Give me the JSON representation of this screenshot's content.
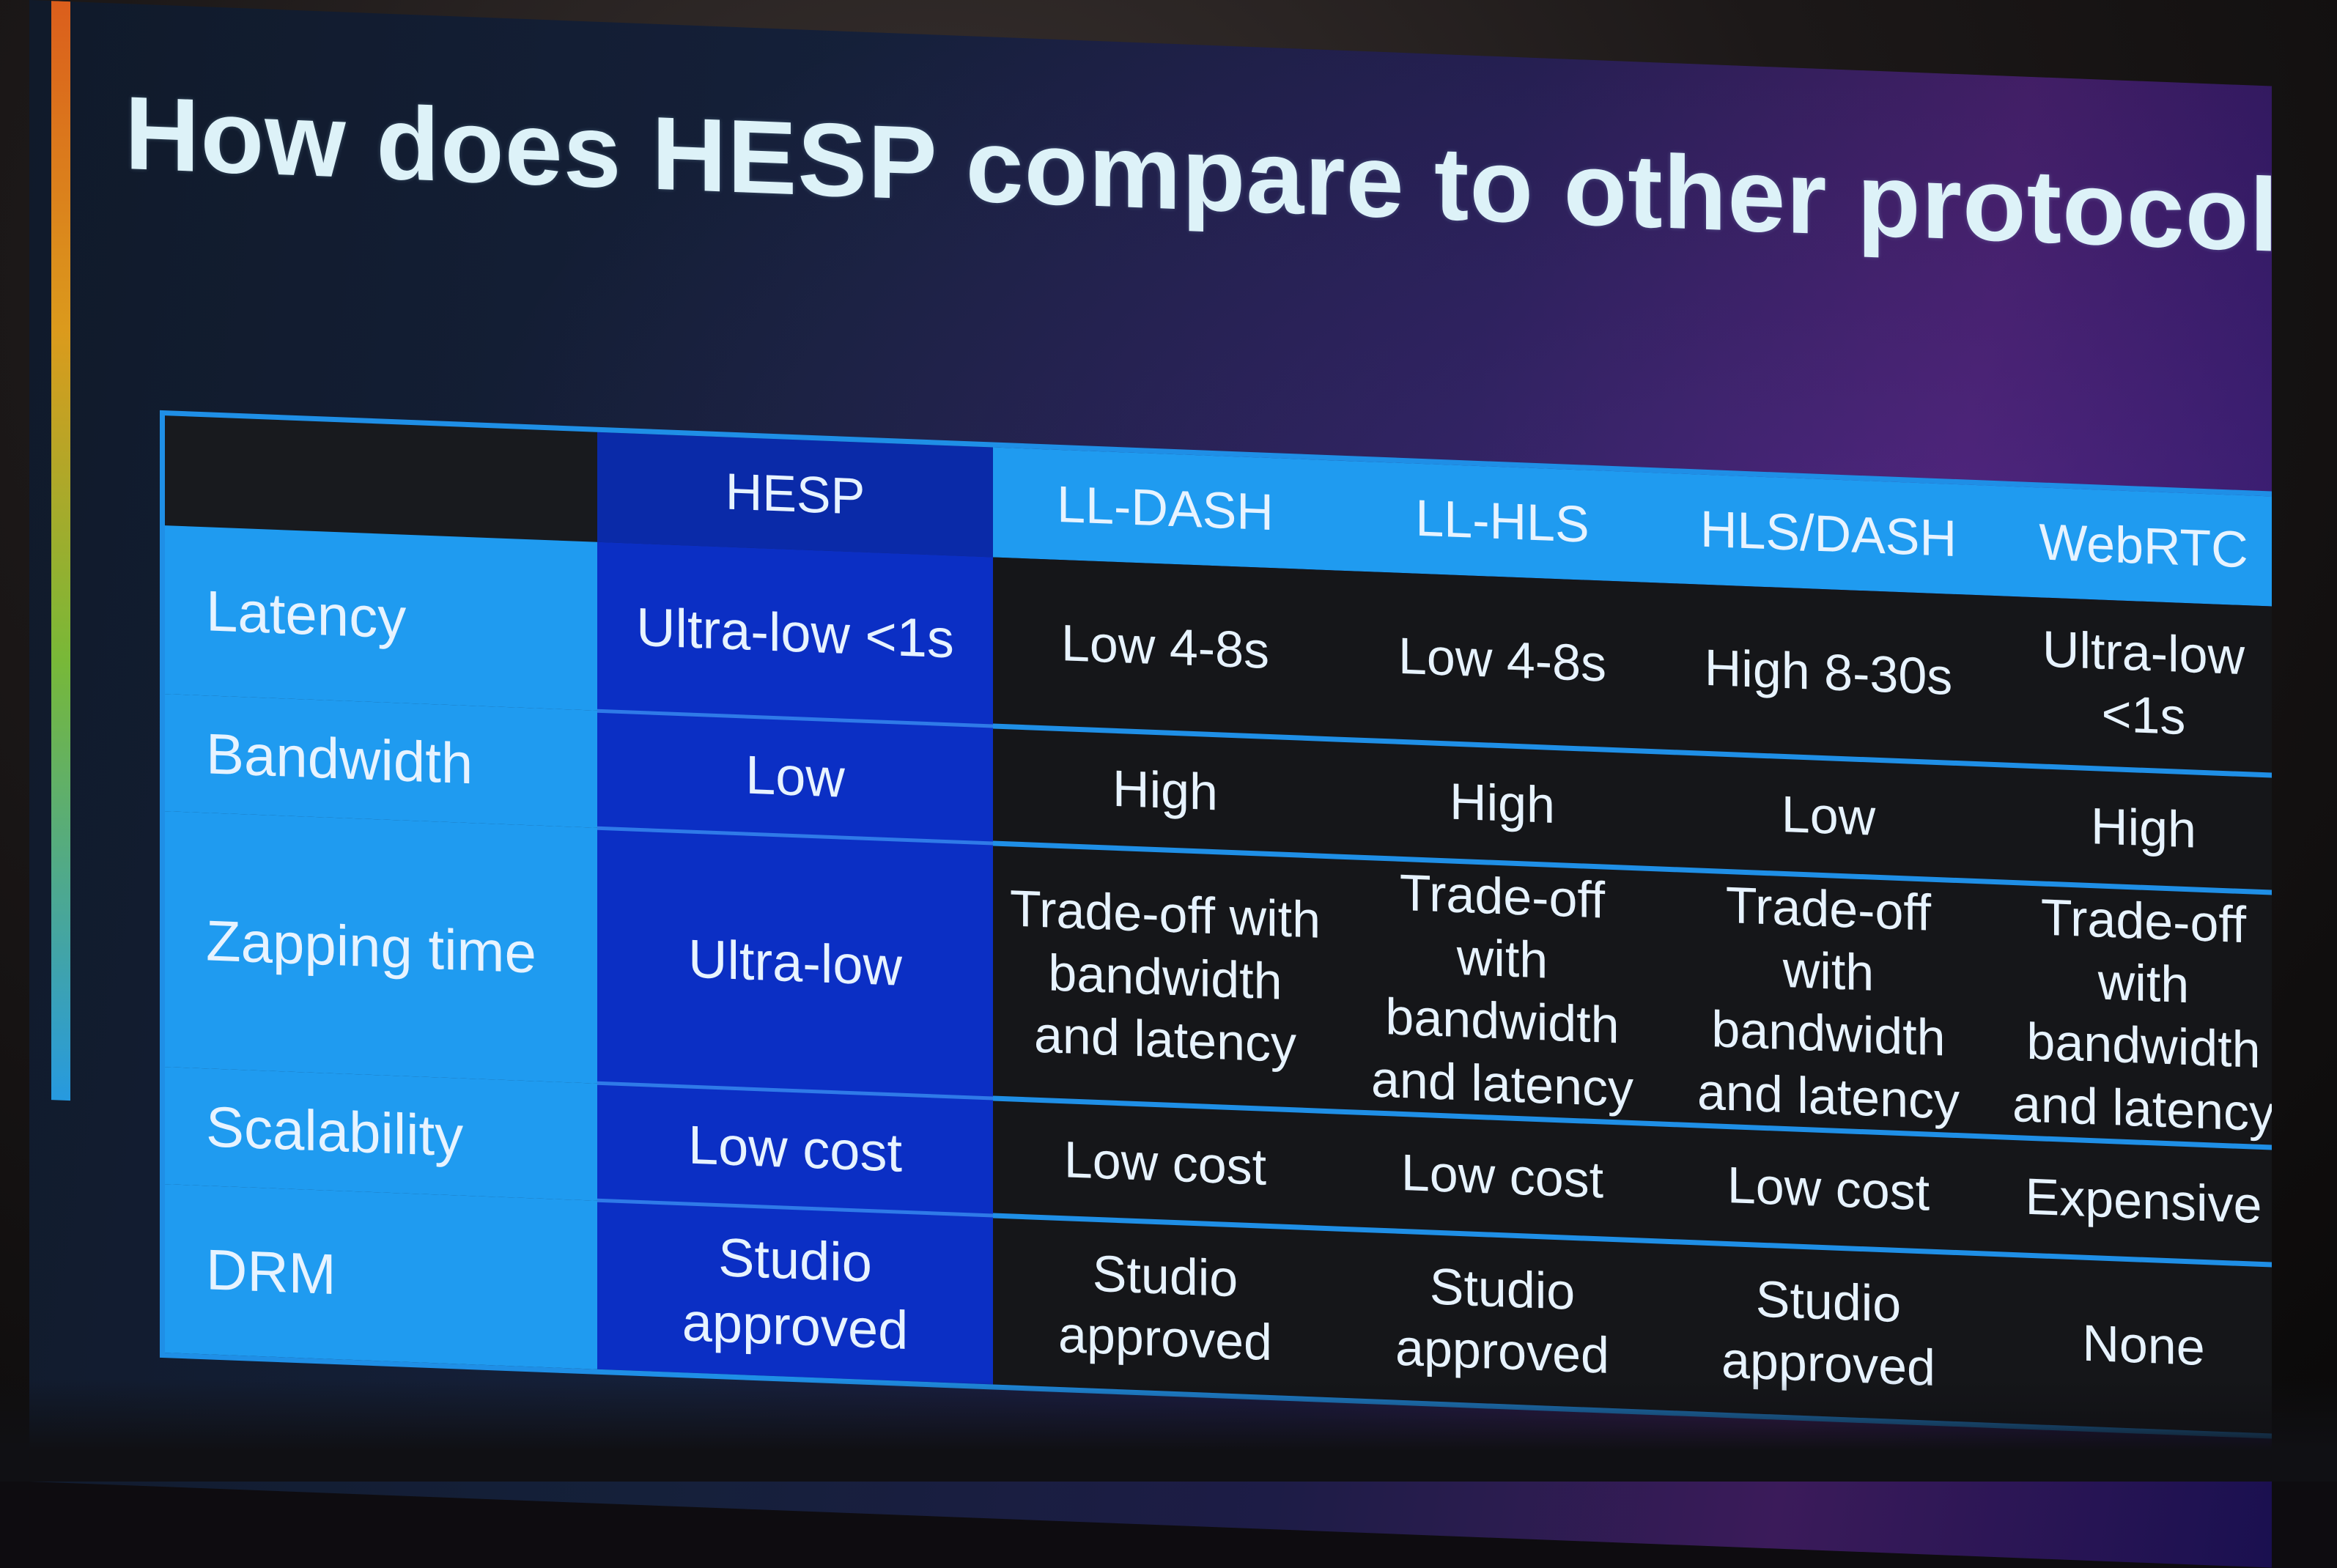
{
  "slide": {
    "title": "How does HESP compare to other protocols?"
  },
  "table": {
    "columns": [
      "HESP",
      "LL-DASH",
      "LL-HLS",
      "HLS/DASH",
      "WebRTC"
    ],
    "rows": [
      {
        "label": "Latency",
        "hesp": "Ultra-low <1s",
        "ll_dash": "Low 4-8s",
        "ll_hls": "Low 4-8s",
        "hls_dash": "High 8-30s",
        "webrtc": "Ultra-low <1s"
      },
      {
        "label": "Bandwidth",
        "hesp": "Low",
        "ll_dash": "High",
        "ll_hls": "High",
        "hls_dash": "Low",
        "webrtc": "High"
      },
      {
        "label": "Zapping time",
        "hesp": "Ultra-low",
        "ll_dash": "Trade-off with bandwidth and latency",
        "ll_hls": "Trade-off with bandwidth and latency",
        "hls_dash": "Trade-off with bandwidth and latency",
        "webrtc": "Trade-off with bandwidth and latency"
      },
      {
        "label": "Scalability",
        "hesp": "Low cost",
        "ll_dash": "Low cost",
        "ll_hls": "Low cost",
        "hls_dash": "Low cost",
        "webrtc": "Expensive"
      },
      {
        "label": "DRM",
        "hesp": "Studio approved",
        "ll_dash": "Studio approved",
        "ll_hls": "Studio approved",
        "hls_dash": "Studio approved",
        "webrtc": "None"
      }
    ]
  },
  "colors": {
    "hesp_column": "#0b2fc4",
    "label_column": "#1f9bf0",
    "other_cells": "#151619",
    "title_text": "#ddf2f8"
  }
}
